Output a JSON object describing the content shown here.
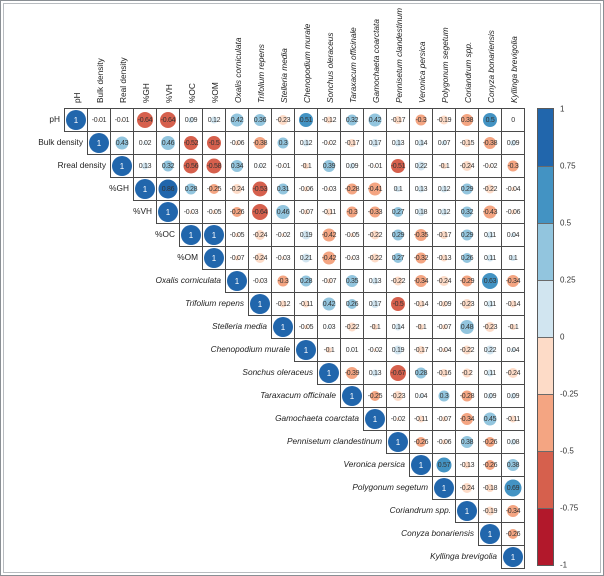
{
  "chart_data": {
    "type": "heatmap",
    "subtype": "upper-triangular correlation matrix, corrplot style: circles colored by sign/strength and sized by |r|, coefficient printed in each cell",
    "col_labels": [
      "pH",
      "Bulk density",
      "Real density",
      "%GH",
      "%VH",
      "%OC",
      "%OM",
      "Oxalis corniculata",
      "Trifolium repens",
      "Stelleria media",
      "Chenopodium murale",
      "Sonchus oleraceus",
      "Taraxacum officinale",
      "Gamochaeta coarctata",
      "Pennisetum clandestinum",
      "Veronica persica",
      "Polygonum segetum",
      "Coriandrum spp.",
      "Conyza bonariensis",
      "Kyllinga brevigolia"
    ],
    "row_labels": [
      "pH",
      "Bulk density",
      "Rreal density",
      "%GH",
      "%VH",
      "%OC",
      "%OM",
      "Oxalis corniculata",
      "Trifolium repens",
      "Stelleria media",
      "Chenopodium murale",
      "Sonchus oleraceus",
      "Taraxacum officinale",
      "Gamochaeta coarctata",
      "Pennisetum clandestinum",
      "Veronica persica",
      "Polygonum segetum",
      "Coriandrum spp.",
      "Conyza bonariensis",
      "Kyllinga brevigolia"
    ],
    "italic_from_index": 7,
    "matrix_upper_triangle": [
      [
        "1",
        "-0.01",
        "-0.01",
        "-0.64",
        "-0.64",
        "0.09",
        "0.12",
        "0.42",
        "0.36",
        "-0.23",
        "0.51",
        "-0.12",
        "0.32",
        "0.42",
        "-0.17",
        "-0.3",
        "-0.19",
        "0.38",
        "0.5",
        "0"
      ],
      [
        "1",
        "0.43",
        "0.02",
        "0.46",
        "-0.52",
        "-0.5",
        "-0.06",
        "-0.38",
        "0.3",
        "0.12",
        "-0.02",
        "-0.17",
        "0.17",
        "0.13",
        "0.14",
        "0.07",
        "-0.15",
        "-0.38",
        "0.09"
      ],
      [
        "1",
        "0.13",
        "0.32",
        "-0.56",
        "-0.58",
        "0.34",
        "0.02",
        "-0.01",
        "-0.1",
        "0.39",
        "0.09",
        "-0.01",
        "-0.51",
        "0.22",
        "-0.1",
        "-0.24",
        "-0.02",
        "-0.3"
      ],
      [
        "1",
        "0.86",
        "0.28",
        "-0.25",
        "-0.24",
        "-0.53",
        "0.31",
        "-0.06",
        "-0.03",
        "-0.28",
        "-0.41",
        "0.1",
        "0.13",
        "0.12",
        "0.29",
        "-0.22",
        "-0.04"
      ],
      [
        "1",
        "-0.03",
        "-0.05",
        "-0.26",
        "-0.64",
        "0.46",
        "-0.07",
        "-0.11",
        "-0.3",
        "-0.33",
        "0.27",
        "0.18",
        "0.12",
        "0.32",
        "-0.43",
        "-0.06"
      ],
      [
        "1",
        "1",
        "-0.05",
        "-0.24",
        "-0.02",
        "0.19",
        "-0.42",
        "-0.05",
        "-0.22",
        "0.29",
        "-0.35",
        "-0.17",
        "0.29",
        "0.11",
        "0.04"
      ],
      [
        "1",
        "-0.07",
        "-0.24",
        "-0.03",
        "0.21",
        "-0.42",
        "-0.03",
        "-0.22",
        "0.27",
        "-0.32",
        "-0.13",
        "0.26",
        "0.11",
        "0.1"
      ],
      [
        "1",
        "-0.03",
        "-0.3",
        "0.28",
        "-0.07",
        "0.35",
        "0.13",
        "-0.22",
        "-0.34",
        "-0.24",
        "-0.29",
        "0.63",
        "-0.34"
      ],
      [
        "1",
        "-0.12",
        "-0.11",
        "0.42",
        "0.26",
        "0.17",
        "-0.5",
        "-0.14",
        "-0.09",
        "-0.23",
        "0.11",
        "-0.14"
      ],
      [
        "1",
        "-0.05",
        "0.03",
        "-0.22",
        "-0.1",
        "0.14",
        "-0.1",
        "-0.07",
        "0.48",
        "-0.23",
        "-0.1"
      ],
      [
        "1",
        "-0.1",
        "0.01",
        "-0.02",
        "0.19",
        "-0.17",
        "-0.04",
        "-0.22",
        "0.22",
        "0.04"
      ],
      [
        "1",
        "-0.39",
        "0.13",
        "-0.67",
        "0.28",
        "-0.16",
        "-0.2",
        "0.11",
        "-0.24"
      ],
      [
        "1",
        "-0.25",
        "-0.23",
        "0.04",
        "0.3",
        "-0.28",
        "0.09",
        "0.09"
      ],
      [
        "1",
        "-0.02",
        "-0.11",
        "-0.07",
        "-0.34",
        "0.45",
        "-0.11"
      ],
      [
        "1",
        "-0.26",
        "-0.06",
        "0.38",
        "-0.26",
        "0.08"
      ],
      [
        "1",
        "0.57",
        "-0.13",
        "-0.26",
        "0.38"
      ],
      [
        "1",
        "-0.24",
        "-0.18",
        "0.69"
      ],
      [
        "1",
        "-0.19",
        "-0.34"
      ],
      [
        "1",
        "-0.26"
      ],
      [
        "1"
      ]
    ],
    "circle_color_exceptions": [
      {
        "row": 0,
        "col": 17,
        "color": "#f4a582",
        "note": "cell shows text 0.38 but an orange (negative-bin) circle in the source image"
      }
    ],
    "legend": {
      "position": "right",
      "ticks": [
        "1",
        "0.75",
        "0.5",
        "0.25",
        "0",
        "-0.25",
        "-0.5",
        "-0.75",
        "-1"
      ],
      "colors_top_to_bottom": [
        "#2166ac",
        "#4393c3",
        "#92c5de",
        "#d1e5f0",
        "#fddbc7",
        "#f4a582",
        "#d6604d",
        "#b2182b"
      ]
    },
    "value_range": [
      -1,
      1
    ],
    "grid": "on",
    "title": ""
  },
  "styles": {
    "grid_line_color": "#4a4a4a",
    "coefficient_text_color": "#333333",
    "diagonal_text_color": "#ffffff",
    "frame_color": "#8a8f94"
  }
}
